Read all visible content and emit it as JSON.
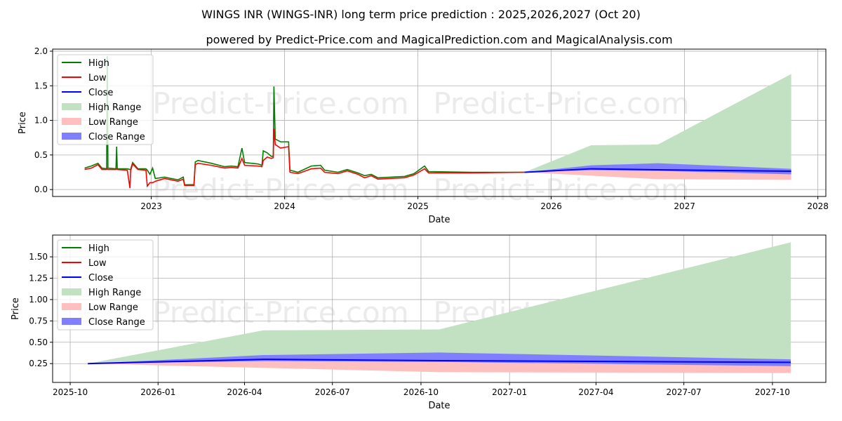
{
  "title": "WINGS INR (WINGS-INR) long term price prediction : 2025,2026,2027 (Oct 20)",
  "subtitle": "powered by Predict-Price.com and MagicalPrediction.com and MagicalAnalysis.com",
  "watermark": "Predict-Price.com",
  "colors": {
    "high": "#008000",
    "low": "#ff0000",
    "close": "#0000ff",
    "high_range": "#c2e0c2",
    "low_range": "#ffbfbf",
    "close_range": "#8080ff"
  },
  "legend": [
    {
      "label": "High",
      "kind": "line",
      "color": "#008000"
    },
    {
      "label": "Low",
      "kind": "line",
      "color": "#ff0000"
    },
    {
      "label": "Close",
      "kind": "line",
      "color": "#0000ff"
    },
    {
      "label": "High Range",
      "kind": "patch",
      "color": "#c2e0c2"
    },
    {
      "label": "Low Range",
      "kind": "patch",
      "color": "#ffbfbf"
    },
    {
      "label": "Close Range",
      "kind": "patch",
      "color": "#8080ff"
    }
  ],
  "chart_data": [
    {
      "type": "line",
      "name": "full-history",
      "xlabel": "Date",
      "ylabel": "Price",
      "xlim": [
        2022.26,
        2028.06
      ],
      "ylim": [
        -0.1,
        2.03
      ],
      "grid": true,
      "legend_placement": "top-left",
      "xticks": [
        {
          "v": 2023,
          "label": "2023"
        },
        {
          "v": 2024,
          "label": "2024"
        },
        {
          "v": 2025,
          "label": "2025"
        },
        {
          "v": 2026,
          "label": "2026"
        },
        {
          "v": 2027,
          "label": "2027"
        },
        {
          "v": 2028,
          "label": "2028"
        }
      ],
      "yticks": [
        {
          "v": 0,
          "label": "0.0"
        },
        {
          "v": 0.5,
          "label": "0.5"
        },
        {
          "v": 1.0,
          "label": "1.0"
        },
        {
          "v": 1.5,
          "label": "1.5"
        },
        {
          "v": 2.0,
          "label": "2.0"
        }
      ],
      "history": {
        "x": [
          2022.5,
          2022.55,
          2022.6,
          2022.63,
          2022.665,
          2022.67,
          2022.675,
          2022.735,
          2022.74,
          2022.745,
          2022.82,
          2022.84,
          2022.845,
          2022.86,
          2022.9,
          2022.96,
          2022.97,
          2022.99,
          2023.01,
          2023.03,
          2023.1,
          2023.15,
          2023.2,
          2023.24,
          2023.25,
          2023.32,
          2023.33,
          2023.35,
          2023.45,
          2023.55,
          2023.6,
          2023.65,
          2023.68,
          2023.7,
          2023.8,
          2023.83,
          2023.84,
          2023.87,
          2023.9,
          2023.915,
          2023.92,
          2023.93,
          2023.97,
          2024.03,
          2024.04,
          2024.1,
          2024.2,
          2024.27,
          2024.3,
          2024.4,
          2024.47,
          2024.55,
          2024.6,
          2024.65,
          2024.7,
          2024.8,
          2024.9,
          2024.97,
          2025.05,
          2025.08,
          2025.4,
          2025.8
        ],
        "high": [
          0.31,
          0.34,
          0.38,
          0.31,
          0.3,
          1.93,
          0.31,
          0.3,
          0.62,
          0.3,
          0.3,
          0.29,
          0.29,
          0.39,
          0.3,
          0.3,
          0.28,
          0.22,
          0.31,
          0.16,
          0.18,
          0.16,
          0.14,
          0.18,
          0.07,
          0.07,
          0.4,
          0.42,
          0.38,
          0.33,
          0.34,
          0.33,
          0.6,
          0.39,
          0.37,
          0.35,
          0.56,
          0.53,
          0.48,
          0.48,
          1.49,
          0.73,
          0.69,
          0.69,
          0.28,
          0.25,
          0.34,
          0.35,
          0.28,
          0.25,
          0.29,
          0.24,
          0.2,
          0.22,
          0.17,
          0.18,
          0.19,
          0.23,
          0.34,
          0.26,
          0.25,
          0.25
        ],
        "low": [
          0.29,
          0.31,
          0.36,
          0.29,
          0.29,
          0.3,
          0.29,
          0.29,
          0.3,
          0.29,
          0.28,
          0.02,
          0.27,
          0.37,
          0.29,
          0.28,
          0.05,
          0.1,
          0.1,
          0.12,
          0.16,
          0.14,
          0.12,
          0.15,
          0.06,
          0.06,
          0.36,
          0.38,
          0.35,
          0.31,
          0.32,
          0.31,
          0.45,
          0.35,
          0.34,
          0.33,
          0.42,
          0.47,
          0.45,
          0.46,
          0.88,
          0.65,
          0.6,
          0.62,
          0.25,
          0.23,
          0.3,
          0.31,
          0.25,
          0.23,
          0.27,
          0.22,
          0.17,
          0.2,
          0.15,
          0.16,
          0.17,
          0.21,
          0.3,
          0.24,
          0.24,
          0.25
        ]
      },
      "forecast": {
        "x": [
          2025.8,
          2026.3,
          2026.8,
          2027.8
        ],
        "high_range_top": [
          0.25,
          0.64,
          0.65,
          1.67
        ],
        "close_range_top": [
          0.25,
          0.35,
          0.38,
          0.3
        ],
        "close": [
          0.25,
          0.3,
          0.285,
          0.265
        ],
        "close_range_bottom": [
          0.25,
          0.28,
          0.27,
          0.22
        ],
        "low_range_bottom": [
          0.25,
          0.2,
          0.15,
          0.14
        ]
      }
    },
    {
      "type": "line",
      "name": "forecast-zoom",
      "xlabel": "Date",
      "ylabel": "Price",
      "xlim": [
        2025.7,
        2027.9
      ],
      "ylim": [
        0.03,
        1.755
      ],
      "grid": true,
      "legend_placement": "top-left",
      "xticks": [
        {
          "v": 2025.75,
          "label": "2025-10"
        },
        {
          "v": 2026.0,
          "label": "2026-01"
        },
        {
          "v": 2026.246,
          "label": "2026-04"
        },
        {
          "v": 2026.496,
          "label": "2026-07"
        },
        {
          "v": 2026.748,
          "label": "2026-10"
        },
        {
          "v": 2027.0,
          "label": "2027-01"
        },
        {
          "v": 2027.246,
          "label": "2027-04"
        },
        {
          "v": 2027.496,
          "label": "2027-07"
        },
        {
          "v": 2027.748,
          "label": "2027-10"
        }
      ],
      "yticks": [
        {
          "v": 0.25,
          "label": "0.25"
        },
        {
          "v": 0.5,
          "label": "0.50"
        },
        {
          "v": 0.75,
          "label": "0.75"
        },
        {
          "v": 1.0,
          "label": "1.00"
        },
        {
          "v": 1.25,
          "label": "1.25"
        },
        {
          "v": 1.5,
          "label": "1.50"
        }
      ],
      "forecast": {
        "x": [
          2025.8,
          2026.3,
          2026.8,
          2027.8
        ],
        "high_range_top": [
          0.25,
          0.64,
          0.65,
          1.67
        ],
        "close_range_top": [
          0.25,
          0.35,
          0.38,
          0.3
        ],
        "close": [
          0.25,
          0.3,
          0.285,
          0.265
        ],
        "close_range_bottom": [
          0.25,
          0.28,
          0.27,
          0.22
        ],
        "low_range_bottom": [
          0.25,
          0.2,
          0.15,
          0.14
        ]
      }
    }
  ]
}
